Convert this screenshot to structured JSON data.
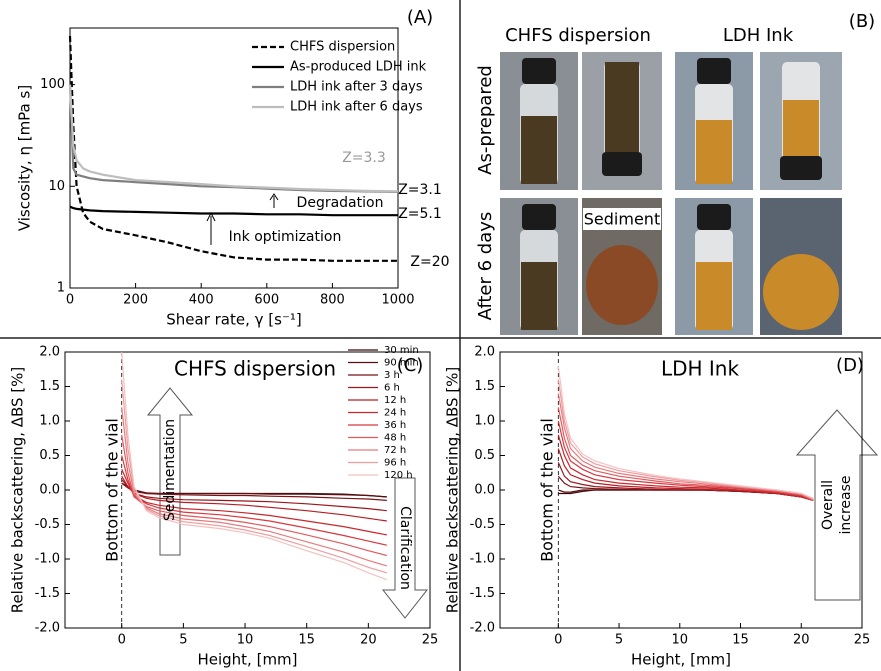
{
  "chart_data": [
    {
      "type": "line",
      "panel": "(A)",
      "xlabel": "Shear rate, γ [s⁻¹]",
      "ylabel": "Viscosity, η [mPa s]",
      "log_y": true,
      "xlim": [
        0,
        1000
      ],
      "xticks": [
        0,
        200,
        400,
        600,
        800,
        1000
      ],
      "ylim": [
        1,
        360
      ],
      "yticks": [
        1,
        10,
        100
      ],
      "x": [
        0,
        10,
        20,
        40,
        60,
        100,
        200,
        300,
        400,
        500,
        600,
        700,
        800,
        900,
        1000
      ],
      "series": [
        {
          "name": "CHFS dispersion",
          "color": "#000000",
          "dash": true,
          "values": [
            300,
            40,
            10,
            5.5,
            4.5,
            3.8,
            3.3,
            2.8,
            2.3,
            2.0,
            1.9,
            1.9,
            1.85,
            1.85,
            1.85
          ]
        },
        {
          "name": "As-produced LDH ink",
          "color": "#000000",
          "dash": false,
          "values": [
            6.3,
            6.1,
            6,
            5.9,
            5.8,
            5.7,
            5.6,
            5.5,
            5.4,
            5.4,
            5.3,
            5.3,
            5.2,
            5.2,
            5.2
          ]
        },
        {
          "name": "LDH ink after 3 days",
          "color": "#7f7f7f",
          "dash": false,
          "values": [
            100,
            15,
            13,
            12.5,
            12,
            11.5,
            11,
            10.5,
            10,
            9.8,
            9.5,
            9.2,
            9,
            8.9,
            8.8
          ]
        },
        {
          "name": "LDH ink after 6 days",
          "color": "#bdbdbd",
          "dash": false,
          "values": [
            100,
            25,
            18,
            15,
            14,
            13,
            11.5,
            11,
            10.5,
            10,
            9.7,
            9.4,
            9.2,
            9.0,
            8.9
          ]
        }
      ],
      "annotations": [
        "Z=3.3",
        "Z=3.1",
        "Z=5.1",
        "Z=20",
        "Degradation",
        "Ink optimization"
      ]
    },
    {
      "type": "line",
      "panel": "(C)",
      "title": "CHFS dispersion",
      "xlabel": "Height, [mm]",
      "ylabel": "Relative backscattering, ΔBS [%]",
      "xlim": [
        -4.6,
        25
      ],
      "xticks": [
        0,
        5,
        10,
        15,
        20,
        25
      ],
      "ylim": [
        -2,
        2
      ],
      "yticks": [
        {
          "value": -2,
          "label": "-2.0"
        },
        -1.5,
        {
          "value": -1,
          "label": "-1.0"
        },
        -0.5,
        {
          "value": 0,
          "label": "0.0"
        },
        0.5,
        {
          "value": 1,
          "label": "1.0"
        },
        1.5,
        {
          "value": 2,
          "label": "2.0"
        }
      ],
      "x": [
        0,
        0.5,
        1,
        2,
        3,
        5,
        8,
        10,
        12,
        15,
        18,
        20,
        21.5
      ],
      "series": [
        {
          "name": "30 min",
          "color": "#3a0a0a",
          "values": [
            0.1,
            0.05,
            0,
            -0.05,
            -0.05,
            -0.05,
            -0.05,
            -0.05,
            -0.05,
            -0.05,
            -0.06,
            -0.08,
            -0.1
          ]
        },
        {
          "name": "90 min",
          "color": "#5c0f12",
          "values": [
            0.1,
            0.04,
            0,
            -0.04,
            -0.05,
            -0.05,
            -0.05,
            -0.05,
            -0.06,
            -0.06,
            -0.07,
            -0.08,
            -0.1
          ]
        },
        {
          "name": "3 h",
          "color": "#7a1418",
          "values": [
            0.1,
            0.03,
            -0.02,
            -0.05,
            -0.06,
            -0.07,
            -0.08,
            -0.08,
            -0.09,
            -0.1,
            -0.12,
            -0.13,
            -0.15
          ]
        },
        {
          "name": "6 h",
          "color": "#98181e",
          "values": [
            0.15,
            0.05,
            -0.05,
            -0.1,
            -0.12,
            -0.14,
            -0.15,
            -0.16,
            -0.17,
            -0.2,
            -0.24,
            -0.27,
            -0.3
          ]
        },
        {
          "name": "12 h",
          "color": "#b41e24",
          "values": [
            0.2,
            0.05,
            -0.05,
            -0.12,
            -0.15,
            -0.18,
            -0.2,
            -0.22,
            -0.25,
            -0.3,
            -0.36,
            -0.41,
            -0.45
          ]
        },
        {
          "name": "24 h",
          "color": "#c8282d",
          "values": [
            0.3,
            0.1,
            -0.08,
            -0.18,
            -0.22,
            -0.27,
            -0.3,
            -0.33,
            -0.37,
            -0.45,
            -0.53,
            -0.6,
            -0.65
          ]
        },
        {
          "name": "36 h",
          "color": "#d8393e",
          "values": [
            0.5,
            0.15,
            -0.1,
            -0.2,
            -0.26,
            -0.32,
            -0.36,
            -0.4,
            -0.45,
            -0.55,
            -0.66,
            -0.74,
            -0.8
          ]
        },
        {
          "name": "48 h",
          "color": "#e05a5e",
          "values": [
            0.8,
            0.25,
            -0.1,
            -0.24,
            -0.3,
            -0.37,
            -0.42,
            -0.47,
            -0.53,
            -0.65,
            -0.78,
            -0.88,
            -0.95
          ]
        },
        {
          "name": "72 h",
          "color": "#e77b7e",
          "values": [
            1.2,
            0.4,
            -0.05,
            -0.26,
            -0.34,
            -0.42,
            -0.47,
            -0.53,
            -0.6,
            -0.75,
            -0.9,
            -1.02,
            -1.1
          ]
        },
        {
          "name": "96 h",
          "color": "#ef9d9f",
          "values": [
            1.6,
            0.6,
            0,
            -0.28,
            -0.37,
            -0.46,
            -0.52,
            -0.58,
            -0.66,
            -0.82,
            -0.99,
            -1.12,
            -1.2
          ]
        },
        {
          "name": "120 h",
          "color": "#f5c0c1",
          "values": [
            2.0,
            0.8,
            0.05,
            -0.3,
            -0.4,
            -0.5,
            -0.56,
            -0.62,
            -0.7,
            -0.88,
            -1.05,
            -1.2,
            -1.3
          ]
        }
      ],
      "annotations": [
        "Bottom of the vial",
        "Sedimentation",
        "Clarification"
      ]
    },
    {
      "type": "line",
      "panel": "(D)",
      "title": "LDH Ink",
      "xlabel": "Height, [mm]",
      "ylabel": "Relative backscattering, ΔBS [%]",
      "xlim": [
        -4.8,
        25
      ],
      "xticks": [
        0,
        5,
        10,
        15,
        20,
        25
      ],
      "ylim": [
        -2,
        2
      ],
      "yticks": [
        {
          "value": -2,
          "label": "-2.0"
        },
        -1.5,
        {
          "value": -1,
          "label": "-1.0"
        },
        -0.5,
        {
          "value": 0,
          "label": "0.0"
        },
        0.5,
        {
          "value": 1,
          "label": "1.0"
        },
        1.5,
        {
          "value": 2,
          "label": "2.0"
        }
      ],
      "x": [
        0,
        0.5,
        1,
        2,
        3,
        5,
        8,
        10,
        12,
        15,
        18,
        20,
        21
      ],
      "series": [
        {
          "color": "#3a0a0a",
          "values": [
            -0.05,
            -0.05,
            -0.05,
            -0.02,
            0,
            0,
            0,
            0,
            0,
            -0.02,
            -0.05,
            -0.1,
            -0.15
          ]
        },
        {
          "color": "#5c0f12",
          "values": [
            0,
            -0.03,
            -0.03,
            0,
            0,
            0,
            0,
            0,
            0,
            -0.02,
            -0.05,
            -0.1,
            -0.15
          ]
        },
        {
          "color": "#7a1418",
          "values": [
            0.2,
            0.1,
            0.05,
            0.03,
            0.02,
            0.01,
            0,
            0,
            0,
            -0.02,
            -0.05,
            -0.1,
            -0.15
          ]
        },
        {
          "color": "#98181e",
          "values": [
            0.4,
            0.2,
            0.12,
            0.08,
            0.05,
            0.03,
            0.01,
            0,
            0,
            -0.02,
            -0.05,
            -0.1,
            -0.15
          ]
        },
        {
          "color": "#b41e24",
          "values": [
            0.6,
            0.35,
            0.22,
            0.15,
            0.1,
            0.06,
            0.03,
            0.02,
            0.01,
            -0.01,
            -0.05,
            -0.1,
            -0.15
          ]
        },
        {
          "color": "#c8282d",
          "values": [
            0.8,
            0.5,
            0.32,
            0.22,
            0.15,
            0.1,
            0.06,
            0.04,
            0.03,
            0,
            -0.04,
            -0.1,
            -0.15
          ]
        },
        {
          "color": "#d8393e",
          "values": [
            1.0,
            0.62,
            0.42,
            0.3,
            0.22,
            0.15,
            0.1,
            0.07,
            0.05,
            0.02,
            -0.03,
            -0.08,
            -0.15
          ]
        },
        {
          "color": "#e05a5e",
          "values": [
            1.2,
            0.75,
            0.5,
            0.36,
            0.28,
            0.2,
            0.13,
            0.09,
            0.07,
            0.03,
            -0.02,
            -0.07,
            -0.15
          ]
        },
        {
          "color": "#e77b7e",
          "values": [
            1.4,
            0.9,
            0.6,
            0.42,
            0.33,
            0.24,
            0.16,
            0.12,
            0.09,
            0.04,
            -0.01,
            -0.06,
            -0.14
          ]
        },
        {
          "color": "#ef9d9f",
          "values": [
            1.6,
            1.0,
            0.68,
            0.48,
            0.38,
            0.28,
            0.19,
            0.14,
            0.11,
            0.05,
            0,
            -0.05,
            -0.13
          ]
        },
        {
          "color": "#f5c0c1",
          "values": [
            1.8,
            1.1,
            0.75,
            0.52,
            0.42,
            0.31,
            0.21,
            0.16,
            0.12,
            0.06,
            0,
            -0.05,
            -0.12
          ]
        }
      ],
      "annotations": [
        "Bottom of the vial",
        "Overall",
        "increase"
      ]
    }
  ],
  "photo_panel": {
    "label": "(B)",
    "columns": [
      "CHFS dispersion",
      "LDH Ink"
    ],
    "rows": [
      "As-prepared",
      "After 6 days"
    ],
    "callout": "Sediment"
  }
}
